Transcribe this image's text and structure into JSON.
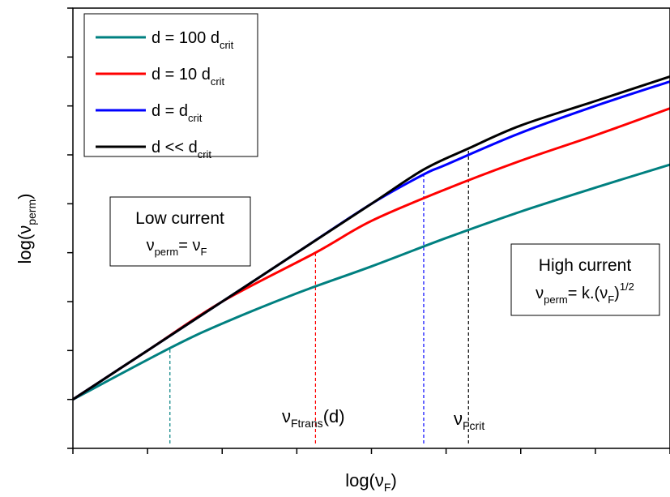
{
  "chart_data": {
    "type": "line",
    "title": "",
    "axes": {
      "xlabel": {
        "main": "log(ν",
        "sub": "F",
        "close": ")"
      },
      "ylabel": {
        "main": "log(ν",
        "sub": "perm",
        "close": ")"
      },
      "xlim": [
        0,
        8
      ],
      "ylim": [
        0,
        9
      ],
      "x_ticks": [
        0,
        1,
        2,
        3,
        4,
        5,
        6,
        7,
        8
      ],
      "y_ticks": [
        0,
        1,
        2,
        3,
        4,
        5,
        6,
        7,
        8,
        9
      ],
      "tick_labels_shown": false,
      "grid": false
    },
    "legend": {
      "position": "top-left",
      "entries": [
        {
          "main": "d = 100 d",
          "sub": "crit",
          "color": "#008080"
        },
        {
          "main": "d = 10 d",
          "sub": "crit",
          "color": "#ff0000"
        },
        {
          "main": "d = d",
          "sub": "crit",
          "color": "#0000ff"
        },
        {
          "main": "d << d",
          "sub": "crit",
          "color": "#000000"
        }
      ]
    },
    "series": [
      {
        "color": "#008080",
        "points": [
          [
            0,
            1.0
          ],
          [
            1.3,
            2.05
          ],
          [
            2,
            2.55
          ],
          [
            3,
            3.17
          ],
          [
            4,
            3.72
          ],
          [
            5,
            4.3
          ],
          [
            6,
            4.84
          ],
          [
            7,
            5.33
          ],
          [
            8,
            5.8
          ]
        ]
      },
      {
        "color": "#ff0000",
        "points": [
          [
            0,
            1.0
          ],
          [
            1,
            2.0
          ],
          [
            2,
            3.0
          ],
          [
            3.25,
            4.0
          ],
          [
            4,
            4.65
          ],
          [
            5,
            5.3
          ],
          [
            6,
            5.88
          ],
          [
            7,
            6.4
          ],
          [
            8,
            6.95
          ]
        ]
      },
      {
        "color": "#0000ff",
        "points": [
          [
            0,
            1.0
          ],
          [
            1,
            2.0
          ],
          [
            2,
            3.0
          ],
          [
            3,
            4.0
          ],
          [
            4,
            5.0
          ],
          [
            4.7,
            5.6
          ],
          [
            5,
            5.8
          ],
          [
            6,
            6.45
          ],
          [
            7,
            7.0
          ],
          [
            8,
            7.5
          ]
        ]
      },
      {
        "color": "#000000",
        "points": [
          [
            0,
            1.0
          ],
          [
            1,
            2.0
          ],
          [
            2,
            3.0
          ],
          [
            3,
            4.0
          ],
          [
            4,
            5.0
          ],
          [
            4.7,
            5.7
          ],
          [
            5.3,
            6.13
          ],
          [
            6,
            6.6
          ],
          [
            7,
            7.1
          ],
          [
            8,
            7.6
          ]
        ]
      }
    ],
    "vertical_markers": [
      {
        "x": 1.3,
        "color": "#008080",
        "style": "dashed"
      },
      {
        "x": 3.25,
        "color": "#ff0000",
        "style": "dashed"
      },
      {
        "x": 4.7,
        "color": "#0000ff",
        "style": "dashed"
      },
      {
        "x": 5.3,
        "color": "#000000",
        "style": "dashed"
      }
    ],
    "annotations": {
      "transition": {
        "main": "ν",
        "sub": "Ftrans",
        "suffix": "(d)"
      },
      "critical": {
        "main": "ν",
        "sub": "Fcrit"
      }
    },
    "boxes": {
      "low": {
        "title": "Low current",
        "formula": {
          "a": "ν",
          "a_sub": "perm",
          "eq": "= ν",
          "b_sub": "F"
        }
      },
      "high": {
        "title": "High current",
        "formula": {
          "a": "ν",
          "a_sub": "perm",
          "eq": "= k.(ν",
          "b_sub": "F",
          "close": ")",
          "sup": "1/2"
        }
      }
    }
  }
}
